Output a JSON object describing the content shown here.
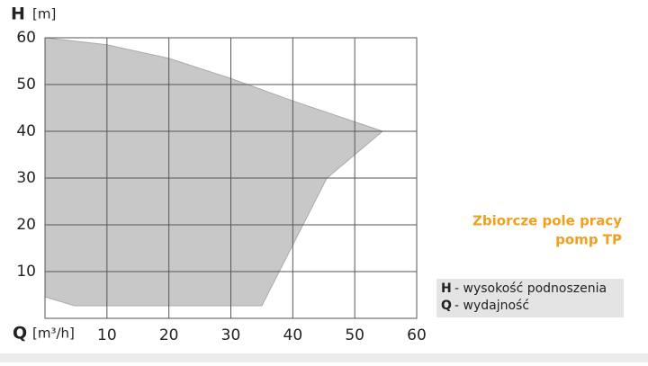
{
  "chart_data": {
    "type": "area",
    "y_label": {
      "symbol": "H",
      "unit": "[m]"
    },
    "x_label": {
      "symbol": "Q",
      "unit": "[m³/h]"
    },
    "x": [
      0,
      10,
      20,
      30,
      40,
      54.5,
      45.5,
      35,
      4.8,
      0
    ],
    "values": [
      60,
      58.5,
      55.6,
      51.3,
      46.5,
      40,
      30,
      2.7,
      2.7,
      4.6
    ],
    "color": "#c8c8c8",
    "xlim": [
      0,
      60
    ],
    "ylim": [
      0,
      60
    ],
    "xticks": [
      10,
      20,
      30,
      40,
      50,
      60
    ],
    "yticks": [
      10,
      20,
      30,
      40,
      50,
      60
    ],
    "grid": true,
    "annotation": [
      "Zbiorcze pole pracy",
      "pomp TP"
    ],
    "legend": [
      {
        "symbol": "H",
        "text": "- wysokość podnoszenia"
      },
      {
        "symbol": "Q",
        "text": "- wydajność"
      }
    ]
  }
}
